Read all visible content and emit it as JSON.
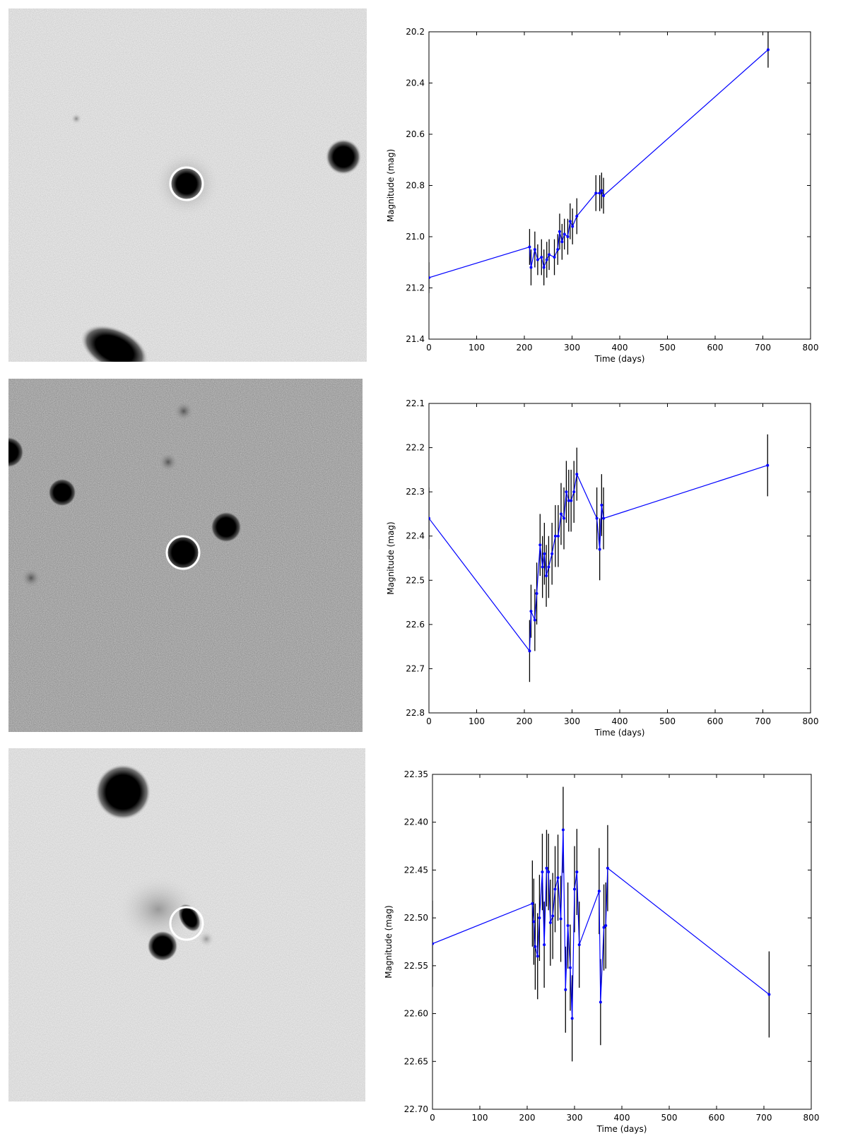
{
  "chart_data": [
    {
      "type": "line",
      "xlabel": "Time (days)",
      "ylabel": "Magnitude (mag)",
      "xlim": [
        0,
        800
      ],
      "ylim": [
        20.2,
        21.4
      ],
      "y_inverted": true,
      "x_ticks": [
        "0",
        "100",
        "200",
        "300",
        "400",
        "500",
        "600",
        "700",
        "800"
      ],
      "y_ticks": [
        "20.2",
        "20.4",
        "20.6",
        "20.8",
        "21.0",
        "21.2",
        "21.4"
      ],
      "series": [
        {
          "color": "#0000ff",
          "errorbar_color": "#000000",
          "points": [
            {
              "x": 0,
              "y": 21.16,
              "err": 0.06
            },
            {
              "x": 211,
              "y": 21.04,
              "err": 0.07
            },
            {
              "x": 214,
              "y": 21.12,
              "err": 0.07
            },
            {
              "x": 222,
              "y": 21.05,
              "err": 0.07
            },
            {
              "x": 228,
              "y": 21.09,
              "err": 0.06
            },
            {
              "x": 236,
              "y": 21.08,
              "err": 0.07
            },
            {
              "x": 241,
              "y": 21.12,
              "err": 0.07
            },
            {
              "x": 247,
              "y": 21.09,
              "err": 0.07
            },
            {
              "x": 252,
              "y": 21.07,
              "err": 0.06
            },
            {
              "x": 263,
              "y": 21.08,
              "err": 0.07
            },
            {
              "x": 270,
              "y": 21.05,
              "err": 0.06
            },
            {
              "x": 274,
              "y": 20.98,
              "err": 0.07
            },
            {
              "x": 279,
              "y": 21.02,
              "err": 0.07
            },
            {
              "x": 284,
              "y": 20.99,
              "err": 0.06
            },
            {
              "x": 291,
              "y": 21.0,
              "err": 0.07
            },
            {
              "x": 296,
              "y": 20.94,
              "err": 0.07
            },
            {
              "x": 301,
              "y": 20.96,
              "err": 0.07
            },
            {
              "x": 310,
              "y": 20.92,
              "err": 0.07
            },
            {
              "x": 350,
              "y": 20.83,
              "err": 0.07
            },
            {
              "x": 358,
              "y": 20.83,
              "err": 0.07
            },
            {
              "x": 362,
              "y": 20.82,
              "err": 0.07
            },
            {
              "x": 366,
              "y": 20.84,
              "err": 0.07
            },
            {
              "x": 711,
              "y": 20.27,
              "err": 0.07
            }
          ]
        }
      ]
    },
    {
      "type": "line",
      "xlabel": "Time (days)",
      "ylabel": "Magnitude (mag)",
      "xlim": [
        0,
        800
      ],
      "ylim": [
        22.1,
        22.8
      ],
      "y_inverted": true,
      "x_ticks": [
        "0",
        "100",
        "200",
        "300",
        "400",
        "500",
        "600",
        "700",
        "800"
      ],
      "y_ticks": [
        "22.1",
        "22.2",
        "22.3",
        "22.4",
        "22.5",
        "22.6",
        "22.7",
        "22.8"
      ],
      "series": [
        {
          "color": "#0000ff",
          "errorbar_color": "#000000",
          "points": [
            {
              "x": 0,
              "y": 22.36,
              "err": 0.07
            },
            {
              "x": 211,
              "y": 22.66,
              "err": 0.07
            },
            {
              "x": 214,
              "y": 22.57,
              "err": 0.06
            },
            {
              "x": 222,
              "y": 22.59,
              "err": 0.07
            },
            {
              "x": 226,
              "y": 22.53,
              "err": 0.07
            },
            {
              "x": 233,
              "y": 22.42,
              "err": 0.07
            },
            {
              "x": 238,
              "y": 22.47,
              "err": 0.07
            },
            {
              "x": 242,
              "y": 22.44,
              "err": 0.07
            },
            {
              "x": 246,
              "y": 22.49,
              "err": 0.07
            },
            {
              "x": 251,
              "y": 22.47,
              "err": 0.07
            },
            {
              "x": 258,
              "y": 22.44,
              "err": 0.07
            },
            {
              "x": 265,
              "y": 22.4,
              "err": 0.07
            },
            {
              "x": 271,
              "y": 22.4,
              "err": 0.07
            },
            {
              "x": 277,
              "y": 22.35,
              "err": 0.07
            },
            {
              "x": 283,
              "y": 22.36,
              "err": 0.07
            },
            {
              "x": 288,
              "y": 22.3,
              "err": 0.07
            },
            {
              "x": 293,
              "y": 22.32,
              "err": 0.07
            },
            {
              "x": 298,
              "y": 22.32,
              "err": 0.07
            },
            {
              "x": 304,
              "y": 22.3,
              "err": 0.07
            },
            {
              "x": 310,
              "y": 22.26,
              "err": 0.06
            },
            {
              "x": 352,
              "y": 22.36,
              "err": 0.07
            },
            {
              "x": 358,
              "y": 22.43,
              "err": 0.07
            },
            {
              "x": 362,
              "y": 22.33,
              "err": 0.07
            },
            {
              "x": 366,
              "y": 22.36,
              "err": 0.07
            },
            {
              "x": 710,
              "y": 22.24,
              "err": 0.07
            }
          ]
        }
      ]
    },
    {
      "type": "line",
      "xlabel": "Time (days)",
      "ylabel": "Magnitude (mag)",
      "xlim": [
        0,
        800
      ],
      "ylim": [
        22.35,
        22.7
      ],
      "y_inverted": true,
      "x_ticks": [
        "0",
        "100",
        "200",
        "300",
        "400",
        "500",
        "600",
        "700",
        "800"
      ],
      "y_ticks": [
        "22.35",
        "22.40",
        "22.45",
        "22.50",
        "22.55",
        "22.60",
        "22.65",
        "22.70"
      ],
      "series": [
        {
          "color": "#0000ff",
          "errorbar_color": "#000000",
          "points": [
            {
              "x": 0,
              "y": 22.527,
              "err": 0.045
            },
            {
              "x": 211,
              "y": 22.485,
              "err": 0.045
            },
            {
              "x": 214,
              "y": 22.504,
              "err": 0.045
            },
            {
              "x": 217,
              "y": 22.53,
              "err": 0.045
            },
            {
              "x": 222,
              "y": 22.54,
              "err": 0.045
            },
            {
              "x": 226,
              "y": 22.5,
              "err": 0.045
            },
            {
              "x": 232,
              "y": 22.452,
              "err": 0.04
            },
            {
              "x": 236,
              "y": 22.528,
              "err": 0.045
            },
            {
              "x": 241,
              "y": 22.448,
              "err": 0.04
            },
            {
              "x": 245,
              "y": 22.452,
              "err": 0.04
            },
            {
              "x": 249,
              "y": 22.505,
              "err": 0.045
            },
            {
              "x": 254,
              "y": 22.498,
              "err": 0.045
            },
            {
              "x": 259,
              "y": 22.47,
              "err": 0.045
            },
            {
              "x": 265,
              "y": 22.458,
              "err": 0.045
            },
            {
              "x": 271,
              "y": 22.501,
              "err": 0.045
            },
            {
              "x": 276,
              "y": 22.408,
              "err": 0.045
            },
            {
              "x": 281,
              "y": 22.575,
              "err": 0.045
            },
            {
              "x": 286,
              "y": 22.508,
              "err": 0.045
            },
            {
              "x": 291,
              "y": 22.552,
              "err": 0.045
            },
            {
              "x": 295,
              "y": 22.605,
              "err": 0.045
            },
            {
              "x": 300,
              "y": 22.47,
              "err": 0.045
            },
            {
              "x": 305,
              "y": 22.452,
              "err": 0.045
            },
            {
              "x": 310,
              "y": 22.528,
              "err": 0.045
            },
            {
              "x": 352,
              "y": 22.472,
              "err": 0.045
            },
            {
              "x": 355,
              "y": 22.588,
              "err": 0.045
            },
            {
              "x": 362,
              "y": 22.51,
              "err": 0.045
            },
            {
              "x": 366,
              "y": 22.508,
              "err": 0.045
            },
            {
              "x": 370,
              "y": 22.448,
              "err": 0.045
            },
            {
              "x": 711,
              "y": 22.58,
              "err": 0.045
            }
          ]
        }
      ]
    }
  ],
  "images": [
    {
      "marker": "white circle",
      "background": "#f2f2f2"
    },
    {
      "marker": "white circle",
      "background": "#c9c9c9"
    },
    {
      "marker": "white circle",
      "background": "#f0f0f0"
    }
  ]
}
